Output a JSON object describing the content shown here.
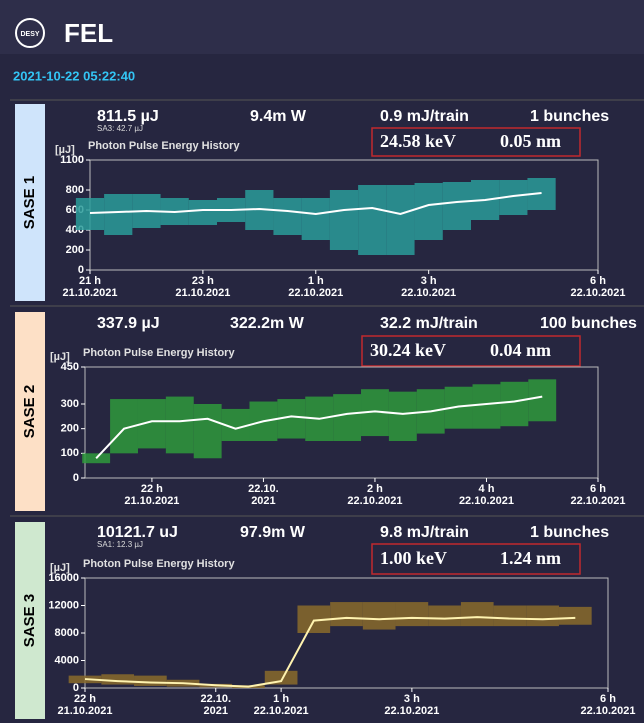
{
  "header": {
    "logo": "DESY",
    "title": "FEL"
  },
  "timestamp": "2021-10-22 05:22:40",
  "panels": [
    {
      "label": "SASE 1",
      "label_color": "#cfe4fb",
      "stats": [
        "811.5 µJ",
        "9.4m W",
        "0.9 mJ/train",
        "1 bunches"
      ],
      "sub_stat": "SA3: 42.7 µJ",
      "highlight": [
        "24.58 keV",
        "0.05 nm"
      ],
      "chart_data": {
        "type": "line",
        "title": "Photon Pulse Energy History",
        "y_unit": "[µJ]",
        "band_color": "#2a9c9a",
        "line_color": "#ffffff",
        "x": [
          21,
          21.5,
          22,
          22.5,
          23,
          23.5,
          24,
          24.5,
          25,
          25.5,
          26,
          26.5,
          27,
          27.5,
          28,
          28.5,
          29
        ],
        "values": [
          570,
          580,
          590,
          580,
          600,
          600,
          610,
          590,
          560,
          600,
          620,
          560,
          650,
          680,
          700,
          740,
          770
        ],
        "band_low": [
          400,
          350,
          420,
          450,
          450,
          480,
          400,
          350,
          300,
          200,
          150,
          150,
          300,
          400,
          500,
          550,
          600
        ],
        "band_high": [
          720,
          760,
          760,
          720,
          700,
          720,
          800,
          720,
          720,
          800,
          850,
          850,
          870,
          880,
          900,
          900,
          920
        ],
        "xlim": [
          21,
          30
        ],
        "xticks": [
          {
            "value": 21,
            "label": "21 h",
            "date": "21.10.2021"
          },
          {
            "value": 23,
            "label": "23 h",
            "date": "21.10.2021"
          },
          {
            "value": 25,
            "label": "1 h",
            "date": "22.10.2021"
          },
          {
            "value": 27,
            "label": "3 h",
            "date": "22.10.2021"
          },
          {
            "value": 30,
            "label": "6 h",
            "date": "22.10.2021"
          }
        ],
        "ylim": [
          0,
          1100
        ],
        "yticks": [
          0,
          200,
          400,
          600,
          800,
          1100
        ]
      }
    },
    {
      "label": "SASE 2",
      "label_color": "#fde0c6",
      "stats": [
        "337.9 µJ",
        "322.2m W",
        "32.2 mJ/train",
        "100 bunches"
      ],
      "highlight": [
        "30.24 keV",
        "0.04 nm"
      ],
      "chart_data": {
        "type": "line",
        "title": "Photon Pulse Energy History",
        "y_unit": "[µJ]",
        "band_color": "#2f9a3c",
        "line_color": "#ffffff",
        "x": [
          21,
          21.5,
          22,
          22.5,
          23,
          23.5,
          24,
          24.5,
          25,
          25.5,
          26,
          26.5,
          27,
          27.5,
          28,
          28.5,
          29
        ],
        "values": [
          80,
          200,
          230,
          230,
          240,
          200,
          230,
          250,
          240,
          260,
          270,
          260,
          270,
          290,
          300,
          310,
          330
        ],
        "band_low": [
          60,
          100,
          120,
          100,
          80,
          150,
          150,
          160,
          150,
          150,
          170,
          150,
          180,
          200,
          200,
          210,
          230
        ],
        "band_high": [
          100,
          320,
          320,
          330,
          300,
          280,
          310,
          320,
          330,
          340,
          360,
          350,
          360,
          370,
          380,
          390,
          400
        ],
        "xlim": [
          20.8,
          30
        ],
        "xticks": [
          {
            "value": 22,
            "label": "22 h",
            "date": "21.10.2021"
          },
          {
            "value": 24,
            "label": "22.10.",
            "date": "2021"
          },
          {
            "value": 26,
            "label": "2 h",
            "date": "22.10.2021"
          },
          {
            "value": 28,
            "label": "4 h",
            "date": "22.10.2021"
          },
          {
            "value": 30,
            "label": "6 h",
            "date": "22.10.2021"
          }
        ],
        "ylim": [
          0,
          450
        ],
        "yticks": [
          0,
          100,
          200,
          300,
          450
        ]
      }
    },
    {
      "label": "SASE 3",
      "label_color": "#cfe8cf",
      "stats": [
        "10121.7 uJ",
        "97.9m W",
        "9.8 mJ/train",
        "1 bunches"
      ],
      "sub_stat": "SA1: 12.3 µJ",
      "highlight": [
        "1.00 keV",
        "1.24 nm"
      ],
      "chart_data": {
        "type": "line",
        "title": "Photon Pulse Energy History",
        "y_unit": "[µJ]",
        "band_color": "#8a6b2c",
        "line_color": "#fff3b0",
        "x": [
          22,
          22.5,
          23,
          23.5,
          24,
          24.5,
          25,
          25.5,
          26,
          26.5,
          27,
          27.5,
          28,
          28.5,
          29,
          29.5
        ],
        "values": [
          1300,
          1000,
          800,
          700,
          400,
          200,
          1000,
          9800,
          10200,
          10000,
          10200,
          10100,
          10300,
          10100,
          10000,
          10200
        ],
        "band_low": [
          700,
          500,
          300,
          200,
          100,
          0,
          500,
          8000,
          9000,
          8500,
          9000,
          9000,
          9000,
          9000,
          9000,
          9200
        ],
        "band_high": [
          1800,
          2000,
          1800,
          1200,
          600,
          400,
          2500,
          12000,
          12500,
          12500,
          12500,
          12000,
          12500,
          12000,
          12000,
          11800
        ],
        "xlim": [
          22,
          30
        ],
        "xticks": [
          {
            "value": 22,
            "label": "22 h",
            "date": "21.10.2021"
          },
          {
            "value": 24,
            "label": "22.10.",
            "date": "2021"
          },
          {
            "value": 25,
            "label": "1 h",
            "date": "22.10.2021"
          },
          {
            "value": 27,
            "label": "3 h",
            "date": "22.10.2021"
          },
          {
            "value": 30,
            "label": "6 h",
            "date": "22.10.2021"
          }
        ],
        "ylim": [
          0,
          16000
        ],
        "yticks": [
          0,
          4000,
          8000,
          12000,
          16000
        ]
      }
    }
  ]
}
